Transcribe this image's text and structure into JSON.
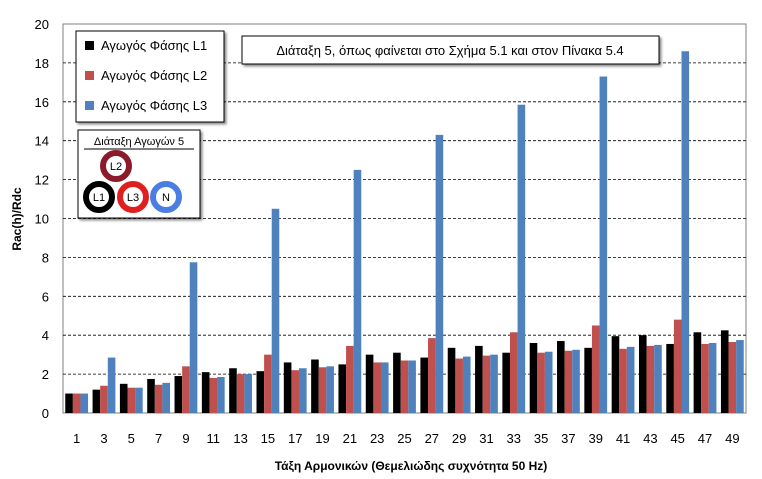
{
  "chart_data": {
    "type": "bar",
    "xlabel": "Τάξη Αρμονικών (Θεμελιώδης συχνότητα 50 Hz)",
    "ylabel": "Rac(h)/Rdc",
    "ylim": [
      0,
      20
    ],
    "yticks": [
      "0",
      "2",
      "4",
      "6",
      "8",
      "10",
      "12",
      "14",
      "16",
      "18",
      "20"
    ],
    "grid": "horizontal-dashed",
    "categories": [
      "1",
      "3",
      "5",
      "7",
      "9",
      "11",
      "13",
      "15",
      "17",
      "19",
      "21",
      "23",
      "25",
      "27",
      "29",
      "31",
      "33",
      "35",
      "37",
      "39",
      "41",
      "43",
      "45",
      "47",
      "49"
    ],
    "series": [
      {
        "name": "Αγωγός Φάσης L1",
        "color": "#000000",
        "values": [
          1.0,
          1.2,
          1.5,
          1.75,
          1.9,
          2.1,
          2.3,
          2.15,
          2.6,
          2.75,
          2.5,
          3.0,
          3.1,
          2.85,
          3.35,
          3.45,
          3.1,
          3.6,
          3.7,
          3.35,
          3.95,
          4.0,
          3.55,
          4.15,
          4.25
        ]
      },
      {
        "name": "Αγωγός Φάσης L2",
        "color": "#c0504d",
        "values": [
          1.0,
          1.4,
          1.3,
          1.45,
          2.4,
          1.8,
          2.0,
          3.0,
          2.2,
          2.35,
          3.45,
          2.6,
          2.7,
          3.85,
          2.8,
          2.95,
          4.15,
          3.1,
          3.2,
          4.5,
          3.3,
          3.45,
          4.8,
          3.55,
          3.65
        ]
      },
      {
        "name": "Αγωγός Φάσης L3",
        "color": "#4f81bd",
        "values": [
          1.0,
          2.85,
          1.3,
          1.55,
          7.75,
          1.85,
          2.0,
          10.5,
          2.3,
          2.4,
          12.5,
          2.6,
          2.7,
          14.3,
          2.9,
          3.0,
          15.85,
          3.15,
          3.25,
          17.3,
          3.4,
          3.5,
          18.6,
          3.6,
          3.75
        ]
      }
    ],
    "legend_position": "top-left",
    "annotation": "Διάταξη 5, όπως φαίνεται στο Σχήμα 5.1 και στον Πίνακα 5.4"
  },
  "inset": {
    "title": "Διάταξη Αγωγών 5",
    "conductors": [
      {
        "label": "L2",
        "ring_color": "#8b1a2b"
      },
      {
        "label": "L1",
        "ring_color": "#000000"
      },
      {
        "label": "L3",
        "ring_color": "#e02020"
      },
      {
        "label": "N",
        "ring_color": "#4a7ee0"
      }
    ]
  }
}
